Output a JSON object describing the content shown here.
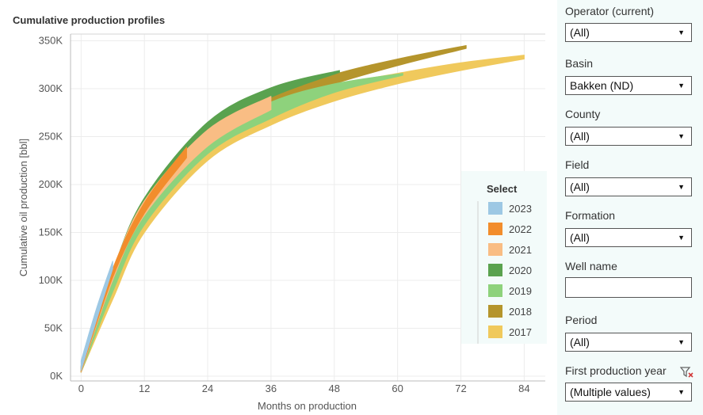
{
  "chart_title": "Cumulative production profiles",
  "chart_data": {
    "type": "area",
    "title": "Cumulative production profiles",
    "xlabel": "Months on production",
    "ylabel": "Cumulative oil production [bbl]",
    "xlim": [
      -2,
      88
    ],
    "ylim": [
      -5000,
      357000
    ],
    "x_ticks": [
      "0",
      "12",
      "24",
      "36",
      "48",
      "60",
      "72",
      "84"
    ],
    "x_tick_values": [
      0,
      12,
      24,
      36,
      48,
      60,
      72,
      84
    ],
    "y_ticks": [
      "0K",
      "50K",
      "100K",
      "150K",
      "200K",
      "250K",
      "300K",
      "350K"
    ],
    "y_tick_values": [
      0,
      50000,
      100000,
      150000,
      200000,
      250000,
      300000,
      350000
    ],
    "grid": true,
    "legend": {
      "title": "Select",
      "position": "right",
      "entries": [
        "2023",
        "2022",
        "2021",
        "2020",
        "2019",
        "2018",
        "2017"
      ]
    },
    "series": [
      {
        "name": "2017",
        "color": "#f0c95c",
        "x": [
          0,
          6,
          12,
          24,
          36,
          48,
          60,
          72,
          84
        ],
        "lower": [
          4000,
          80000,
          150000,
          225000,
          262000,
          287000,
          305000,
          319000,
          331000
        ],
        "upper": [
          9000,
          95000,
          170000,
          245000,
          282000,
          303000,
          316000,
          327000,
          335000
        ]
      },
      {
        "name": "2018",
        "color": "#b5952c",
        "x": [
          0,
          6,
          12,
          24,
          36,
          48,
          60,
          73
        ],
        "lower": [
          4000,
          90000,
          162000,
          240000,
          282000,
          305000,
          324000,
          342000
        ],
        "upper": [
          9000,
          102000,
          178000,
          255000,
          292000,
          315000,
          331000,
          345000
        ]
      },
      {
        "name": "2019",
        "color": "#8ed27c",
        "x": [
          0,
          6,
          12,
          24,
          36,
          48,
          61
        ],
        "lower": [
          4000,
          88000,
          158000,
          232000,
          269000,
          296000,
          314000
        ],
        "upper": [
          9000,
          103000,
          178000,
          250000,
          286000,
          305000,
          316000
        ]
      },
      {
        "name": "2020",
        "color": "#5aa24f",
        "x": [
          0,
          6,
          12,
          24,
          36,
          49
        ],
        "lower": [
          4000,
          100000,
          170000,
          253000,
          291000,
          317000
        ],
        "upper": [
          10000,
          110000,
          186000,
          265000,
          301000,
          319000
        ]
      },
      {
        "name": "2021",
        "color": "#f9bd84",
        "x": [
          0,
          6,
          12,
          24,
          36
        ],
        "lower": [
          4000,
          100000,
          168000,
          240000,
          278000
        ],
        "upper": [
          10000,
          110000,
          183000,
          257000,
          292000
        ]
      },
      {
        "name": "2022",
        "color": "#f28d2c",
        "x": [
          0,
          6,
          12,
          20
        ],
        "lower": [
          5000,
          103000,
          170000,
          228000
        ],
        "upper": [
          11000,
          112000,
          181000,
          239000
        ]
      },
      {
        "name": "2023",
        "color": "#9dc8e4",
        "x": [
          0,
          3,
          6
        ],
        "lower": [
          6000,
          60000,
          112000
        ],
        "upper": [
          16000,
          72000,
          120000
        ]
      }
    ]
  },
  "filters": [
    {
      "label": "Operator (current)",
      "value": "(All)",
      "type": "select"
    },
    {
      "label": "Basin",
      "value": "Bakken (ND)",
      "type": "select"
    },
    {
      "label": "County",
      "value": "(All)",
      "type": "select"
    },
    {
      "label": "Field",
      "value": "(All)",
      "type": "select"
    },
    {
      "label": "Formation",
      "value": "(All)",
      "type": "select"
    },
    {
      "label": "Well name",
      "value": "",
      "type": "text"
    },
    {
      "label": "Period",
      "value": "(All)",
      "type": "select"
    },
    {
      "label": "First production year",
      "value": "(Multiple values)",
      "type": "select",
      "icon": "clear-filter-icon"
    }
  ]
}
